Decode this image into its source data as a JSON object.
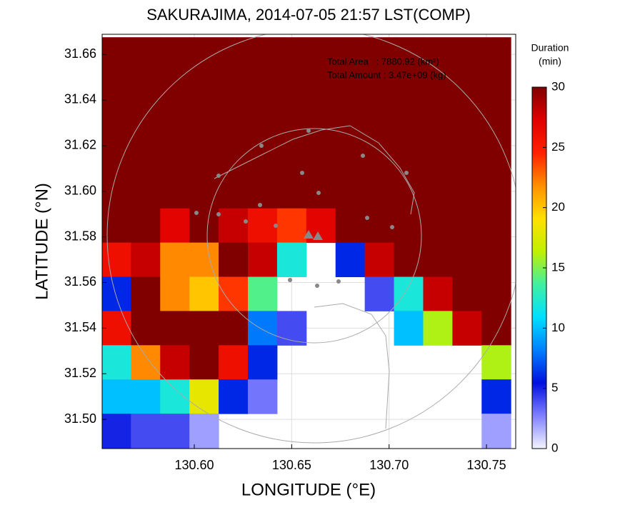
{
  "chart_data": {
    "type": "heatmap",
    "title": "SAKURAJIMA, 2014-07-05 21:57 LST(COMP)",
    "xlabel": "LONGITUDE (°E)",
    "ylabel": "LATITUDE (°N)",
    "annotations": [
      "Total Area   : 7880.92 (km²)",
      "Total Amount : 3.47e+09 (kg)"
    ],
    "colorbar_label": [
      "Duration",
      "(min)"
    ],
    "xlim": [
      130.5527,
      130.765
    ],
    "ylim": [
      31.4872,
      31.6688
    ],
    "xticks": [
      {
        "value": 130.6,
        "label": "130.60"
      },
      130.65,
      {
        "value": 130.7,
        "label": "130.70"
      },
      130.75
    ],
    "yticks": [
      {
        "value": 31.5,
        "label": "31.50"
      },
      31.52,
      31.54,
      31.56,
      31.58,
      {
        "value": 31.6,
        "label": "31.60"
      },
      31.62,
      31.64,
      31.66
    ],
    "grid": true,
    "clim": [
      0,
      30
    ],
    "cticks": [
      0,
      5,
      10,
      15,
      20,
      25,
      30
    ],
    "colormap": [
      "#f4f4ff",
      "#8080ff",
      "#0010e0",
      "#0080ff",
      "#00e0ff",
      "#40f0a0",
      "#c0f000",
      "#ffe000",
      "#ff9000",
      "#ff2000",
      "#e00000",
      "#800000"
    ],
    "x": [
      130.56,
      130.575,
      130.59,
      130.605,
      130.62,
      130.635,
      130.65,
      130.665,
      130.68,
      130.695,
      130.71,
      130.725,
      130.74,
      130.755
    ],
    "y": [
      31.66,
      31.645,
      31.63,
      31.615,
      31.6,
      31.585,
      31.57,
      31.555,
      31.54,
      31.525,
      31.51,
      31.495
    ],
    "values": [
      [
        30,
        30,
        30,
        30,
        30,
        30,
        30,
        30,
        30,
        30,
        30,
        30,
        30,
        30
      ],
      [
        30,
        30,
        30,
        30,
        30,
        30,
        30,
        30,
        30,
        30,
        30,
        30,
        30,
        30
      ],
      [
        30,
        30,
        30,
        30,
        30,
        30,
        30,
        30,
        30,
        30,
        30,
        30,
        30,
        30
      ],
      [
        30,
        30,
        30,
        30,
        30,
        30,
        30,
        30,
        30,
        30,
        30,
        30,
        30,
        30
      ],
      [
        30,
        30,
        30,
        30,
        30,
        30,
        30,
        30,
        30,
        30,
        30,
        30,
        30,
        30
      ],
      [
        30,
        30,
        27,
        30,
        28,
        26,
        24,
        27,
        30,
        30,
        30,
        30,
        30,
        30
      ],
      [
        26,
        28,
        22,
        22,
        30,
        28,
        12,
        0,
        6,
        28,
        30,
        30,
        30,
        30
      ],
      [
        6,
        30,
        22,
        20,
        24,
        14,
        0,
        0,
        0,
        4,
        12,
        28,
        30,
        30
      ],
      [
        26,
        30,
        30,
        30,
        30,
        8,
        4,
        0,
        0,
        0,
        10,
        16,
        28,
        30
      ],
      [
        12,
        22,
        28,
        30,
        26,
        6,
        0,
        0,
        0,
        0,
        0,
        0,
        0,
        16
      ],
      [
        10,
        10,
        12,
        18,
        6,
        3,
        0,
        0,
        0,
        0,
        0,
        0,
        0,
        6
      ],
      [
        5,
        4,
        4,
        2,
        0,
        0,
        0,
        0,
        0,
        0,
        0,
        0,
        0,
        2
      ]
    ]
  }
}
